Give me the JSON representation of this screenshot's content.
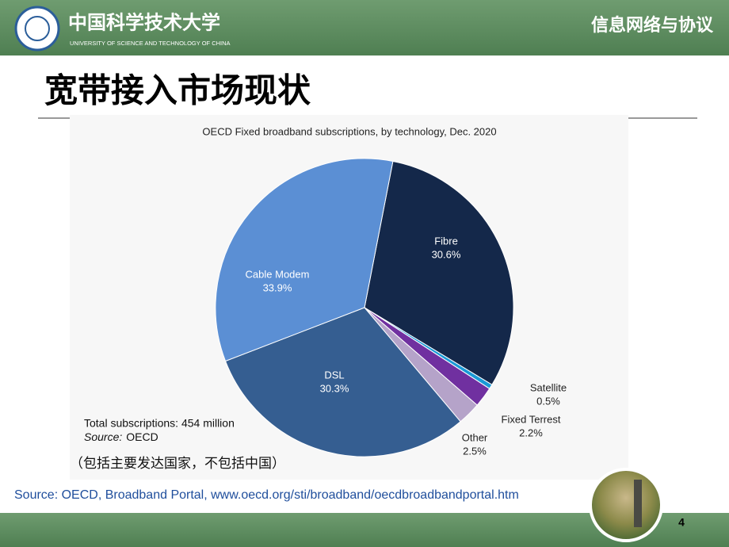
{
  "header": {
    "university": "中国科学技术大学",
    "university_en": "UNIVERSITY OF SCIENCE AND TECHNOLOGY OF CHINA",
    "course": "信息网络与协议"
  },
  "slide_title": "宽带接入市场现状",
  "chart_data": {
    "type": "pie",
    "title": "OECD Fixed broadband subscriptions, by technology,  Dec. 2020",
    "categories": [
      "Fibre",
      "Satellite",
      "Fixed Terrest",
      "Other",
      "DSL",
      "Cable Modem"
    ],
    "values": [
      30.6,
      0.5,
      2.2,
      2.5,
      30.3,
      33.9
    ],
    "value_labels": [
      "30.6%",
      "0.5%",
      "2.2%",
      "2.5%",
      "30.3%",
      "33.9%"
    ],
    "colors": [
      "#14284a",
      "#1a9ad6",
      "#7030a0",
      "#b5a3c9",
      "#355e91",
      "#5b8fd4"
    ],
    "annotations": {
      "total": "Total subscriptions: 454 million",
      "source_label": "Source:",
      "source": "OECD"
    }
  },
  "note": "（包括主要发达国家，不包括中国）",
  "source": "Source: OECD, Broadband Portal, www.oecd.org/sti/broadband/oecdbroadbandportal.htm",
  "page_number": "4"
}
